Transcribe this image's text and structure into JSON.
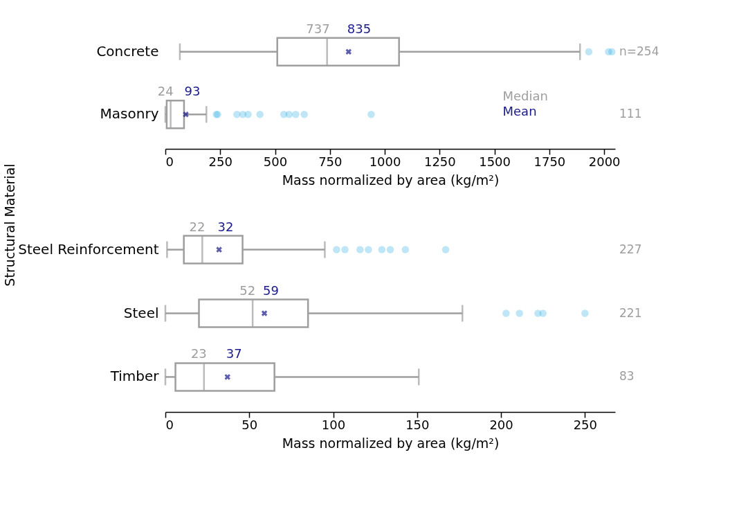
{
  "chart_data": [
    {
      "type": "box",
      "orientation": "horizontal",
      "ylabel": "Structural Material",
      "xlabel": "Mass normalized by area (kg/m²)",
      "categories": [
        "Concrete",
        "Masonry"
      ],
      "boxes": [
        {
          "low": 66,
          "q1": 510,
          "median": 737,
          "q3": 1065,
          "high": 1890,
          "mean": 835,
          "outliers": [
            1930,
            2020,
            2035
          ]
        },
        {
          "low": 0,
          "q1": 6,
          "median": 24,
          "q3": 85,
          "high": 187,
          "mean": 93,
          "outliers": [
            232,
            238,
            326,
            353,
            377,
            431,
            540,
            564,
            594,
            633,
            938
          ]
        }
      ],
      "xlim": [
        0,
        2050
      ],
      "xticks": [
        0,
        250,
        500,
        750,
        1000,
        1250,
        1500,
        1750,
        2000
      ],
      "grid": false,
      "annotations": [
        {
          "text": "737",
          "x": 737,
          "y": "Concrete"
        },
        {
          "text": "24",
          "x": 24,
          "y": "Masonry"
        },
        "835",
        "93",
        "n=254",
        "111",
        "Median",
        "Mean"
      ]
    },
    {
      "type": "box",
      "orientation": "horizontal",
      "xlabel": "Mass normalized by area (kg/m²)",
      "categories": [
        "Steel Reinforcement",
        "Steel",
        "Timber"
      ],
      "boxes": [
        {
          "low": 1,
          "q1": 11,
          "median": 22,
          "q3": 46,
          "high": 95,
          "mean": 32,
          "outliers": [
            102,
            107,
            116,
            121,
            129,
            134,
            143,
            167
          ]
        },
        {
          "low": 0,
          "q1": 20,
          "median": 52,
          "q3": 85,
          "high": 177,
          "mean": 59,
          "outliers": [
            203,
            211,
            222,
            225,
            250
          ]
        },
        {
          "low": 0,
          "q1": 6,
          "median": 23,
          "q3": 65,
          "high": 151,
          "mean": 37
        }
      ],
      "xlim": [
        0,
        268
      ],
      "xticks": [
        0,
        50,
        100,
        150,
        200,
        250
      ],
      "grid": false,
      "annotations": [
        {
          "text": "22",
          "x": 22,
          "y": "Steel Reinforcement"
        },
        {
          "text": "52",
          "x": 52,
          "y": "Steel"
        },
        {
          "text": "23",
          "x": 23,
          "y": "Timber"
        },
        "32",
        "59",
        "37",
        "227",
        "221",
        "83"
      ]
    }
  ]
}
